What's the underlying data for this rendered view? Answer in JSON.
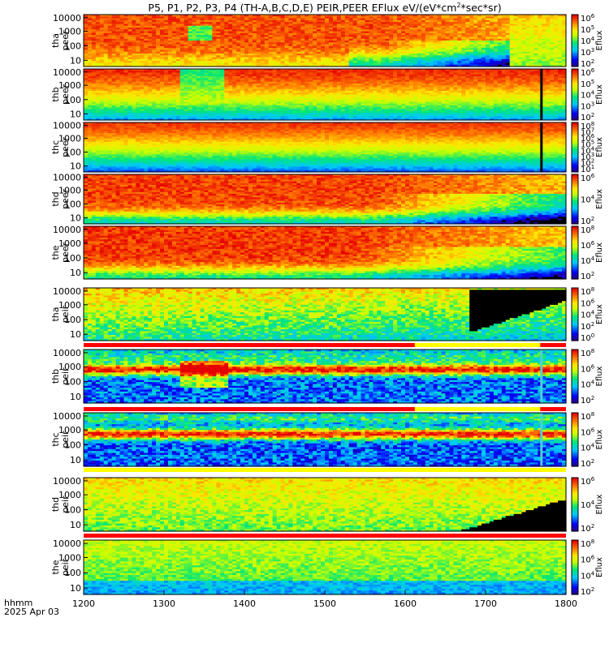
{
  "title": "P5, P1, P2, P3, P4 (TH-A,B,C,D,E) PEIR,PEER EFlux eV/(eV*cm",
  "title_sup": "2",
  "title_tail": "*sec*sr)",
  "colorbar_label": "Eflux",
  "time_label": "hhmm",
  "date_label": "2025 Apr 03",
  "colors": {
    "frame": "#000000",
    "quality_red": "#ff0000",
    "quality_yellow": "#ffff00"
  },
  "chart_data": {
    "type": "heatmap",
    "x_axis": {
      "ticks": [
        "1200",
        "1300",
        "1400",
        "1500",
        "1600",
        "1700",
        "1800"
      ],
      "range": [
        1200,
        1800
      ]
    },
    "panels": [
      {
        "name": "peer_a",
        "ylabel": [
          "tha",
          "peer"
        ],
        "yticks": [
          "10000",
          "1000",
          "100",
          "10"
        ],
        "cbar_ticks": [
          "10^6",
          "10^5",
          "10^4",
          "10^3",
          "10^2"
        ],
        "pattern": "peer_a"
      },
      {
        "name": "peer_b",
        "ylabel": [
          "thb",
          "peer"
        ],
        "yticks": [
          "10000",
          "1000",
          "100",
          "10"
        ],
        "cbar_ticks": [
          "10^6",
          "10^5",
          "10^4",
          "10^3",
          "10^2"
        ],
        "pattern": "peer_b"
      },
      {
        "name": "peer_c",
        "ylabel": [
          "thc",
          "peer"
        ],
        "yticks": [
          "10000",
          "1000",
          "100",
          "10"
        ],
        "cbar_ticks": [
          "10^8",
          "10^7",
          "10^6",
          "10^5",
          "10^4",
          "10^3",
          "10^2",
          "10^1"
        ],
        "pattern": "peer_c"
      },
      {
        "name": "peer_d",
        "ylabel": [
          "thd",
          "peer"
        ],
        "yticks": [
          "10000",
          "1000",
          "100",
          "10"
        ],
        "cbar_ticks": [
          "10^6",
          "10^4",
          "10^2"
        ],
        "pattern": "peer_d"
      },
      {
        "name": "peer_e",
        "ylabel": [
          "the",
          "peer"
        ],
        "yticks": [
          "10000",
          "1000",
          "100",
          "10"
        ],
        "cbar_ticks": [
          "10^8",
          "10^6",
          "10^4",
          "10^2"
        ],
        "pattern": "peer_e"
      },
      {
        "name": "peir_a",
        "ylabel": [
          "tha",
          "peir"
        ],
        "yticks": [
          "10000",
          "1000",
          "100",
          "10"
        ],
        "cbar_ticks": [
          "10^8",
          "10^6",
          "10^4",
          "10^2",
          "10^0"
        ],
        "pattern": "peir_a",
        "quality": [
          {
            "to": 1612,
            "c": "red"
          },
          {
            "to": 1768,
            "c": "yellow"
          },
          {
            "to": 1800,
            "c": "red"
          }
        ]
      },
      {
        "name": "peir_b",
        "ylabel": [
          "thb",
          "peir"
        ],
        "yticks": [
          "10000",
          "1000",
          "100",
          "10"
        ],
        "cbar_ticks": [
          "10^8",
          "10^6",
          "10^4",
          "10^2"
        ],
        "pattern": "peir_b",
        "quality": [
          {
            "to": 1612,
            "c": "red"
          },
          {
            "to": 1768,
            "c": "yellow"
          },
          {
            "to": 1800,
            "c": "red"
          }
        ]
      },
      {
        "name": "peir_c",
        "ylabel": [
          "thc",
          "peir"
        ],
        "yticks": [
          "10000",
          "1000",
          "100",
          "10"
        ],
        "cbar_ticks": [
          "10^8",
          "10^6",
          "10^4",
          "10^2"
        ],
        "pattern": "peir_c",
        "quality": [
          {
            "to": 1800,
            "c": "yellow"
          }
        ]
      },
      {
        "name": "peir_d",
        "ylabel": [
          "thd",
          "peir"
        ],
        "yticks": [
          "10000",
          "1000",
          "100",
          "10"
        ],
        "cbar_ticks": [
          "10^6",
          "10^4",
          "10^2"
        ],
        "pattern": "peir_d",
        "quality": [
          {
            "to": 1800,
            "c": "red"
          }
        ]
      },
      {
        "name": "peir_e",
        "ylabel": [
          "the",
          "peir"
        ],
        "yticks": [
          "10000",
          "1000",
          "100",
          "10"
        ],
        "cbar_ticks": [
          "10^8",
          "10^6",
          "10^4",
          "10^2"
        ],
        "pattern": "peir_e"
      }
    ]
  }
}
